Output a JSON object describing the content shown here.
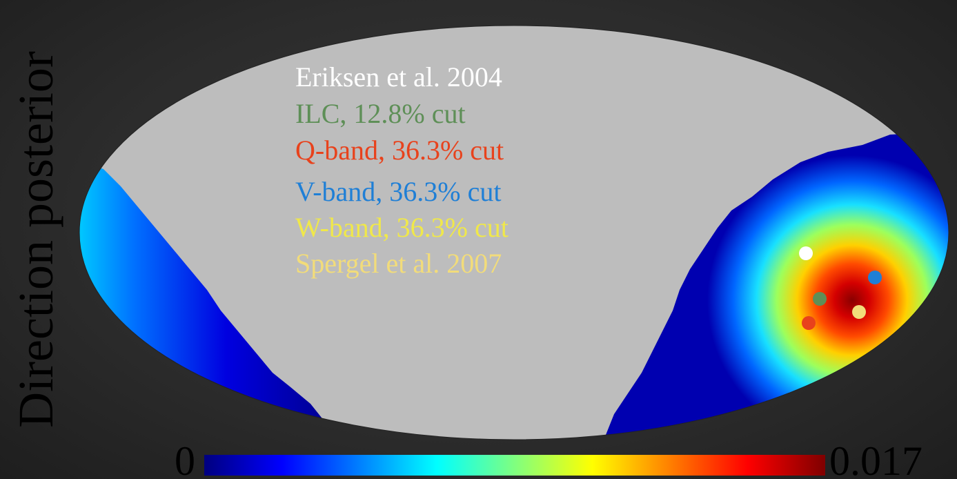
{
  "chart_data": {
    "type": "heatmap",
    "projection": "mollweide",
    "ylabel": "Direction posterior",
    "title": "",
    "xlabel": "",
    "colorbar": {
      "min_label": "0",
      "max_label": "0.017",
      "range": [
        0,
        0.017
      ],
      "colormap": "jet"
    },
    "mask_color": "#bdbdbd",
    "legend": [
      {
        "label": "Eriksen et al. 2004",
        "color": "#ffffff"
      },
      {
        "label": "ILC, 12.8% cut",
        "color": "#5e8f57"
      },
      {
        "label": "Q-band, 36.3% cut",
        "color": "#e8421c"
      },
      {
        "label": "V-band, 36.3% cut",
        "color": "#1f7fd6"
      },
      {
        "label": "W-band, 36.3% cut",
        "color": "#f0e84a"
      },
      {
        "label": "Spergel et al. 2007",
        "color": "#f2dc7a"
      }
    ]
  }
}
